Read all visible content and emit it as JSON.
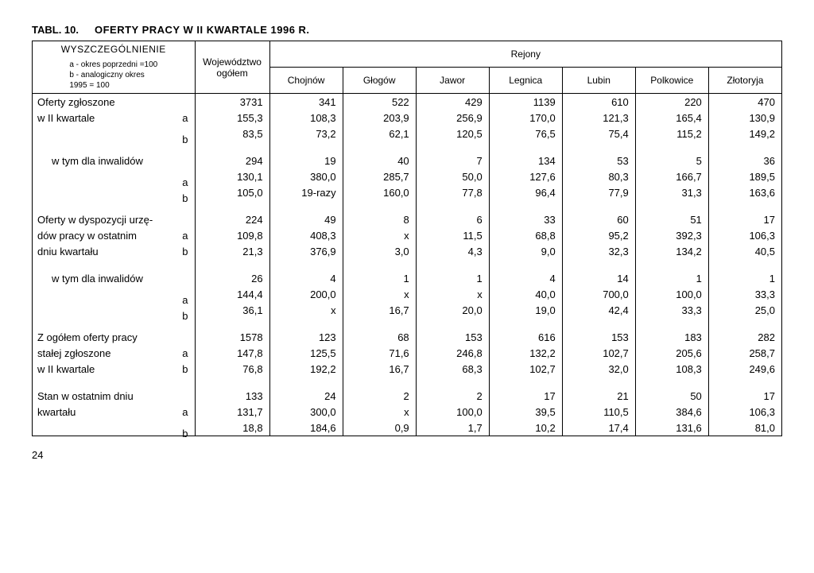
{
  "tablLabel": "TABL. 10.",
  "title": "OFERTY PRACY W II KWARTALE 1996 R.",
  "headers": {
    "wyszMain": "WYSZCZEGÓLNIENIE",
    "wyszSub1": "a - okres poprzedni =100",
    "wyszSub2": "b - analogiczny okres",
    "wyszSub3": "1995 = 100",
    "woj1": "Województwo ogółem",
    "rejony": "Rejony",
    "cols": [
      "Chojnów",
      "Głogów",
      "Jawor",
      "Legnica",
      "Lubin",
      "Polkowice",
      "Złotoryja"
    ]
  },
  "rows": [
    {
      "label": "Oferty zgłoszone",
      "v": [
        "3731",
        "341",
        "522",
        "429",
        "1139",
        "610",
        "220",
        "470"
      ]
    },
    {
      "label": "w II kwartale",
      "suffix": "a",
      "v": [
        "155,3",
        "108,3",
        "203,9",
        "256,9",
        "170,0",
        "121,3",
        "165,4",
        "130,9"
      ]
    },
    {
      "label": "",
      "suffix": "b",
      "v": [
        "83,5",
        "73,2",
        "62,1",
        "120,5",
        "76,5",
        "75,4",
        "115,2",
        "149,2"
      ]
    },
    {
      "spacer": true
    },
    {
      "label": "w tym dla inwalidów",
      "indent": 1,
      "v": [
        "294",
        "19",
        "40",
        "7",
        "134",
        "53",
        "5",
        "36"
      ]
    },
    {
      "label": "",
      "suffix": "a",
      "v": [
        "130,1",
        "380,0",
        "285,7",
        "50,0",
        "127,6",
        "80,3",
        "166,7",
        "189,5"
      ]
    },
    {
      "label": "",
      "suffix": "b",
      "v": [
        "105,0",
        "19-razy",
        "160,0",
        "77,8",
        "96,4",
        "77,9",
        "31,3",
        "163,6"
      ]
    },
    {
      "spacer": true
    },
    {
      "label": "Oferty w dyspozycji urzę-",
      "v": [
        "224",
        "49",
        "8",
        "6",
        "33",
        "60",
        "51",
        "17"
      ]
    },
    {
      "label": "dów pracy w ostatnim",
      "suffix": "a",
      "v": [
        "109,8",
        "408,3",
        "x",
        "11,5",
        "68,8",
        "95,2",
        "392,3",
        "106,3"
      ]
    },
    {
      "label": "dniu kwartału",
      "suffix": "b",
      "v": [
        "21,3",
        "376,9",
        "3,0",
        "4,3",
        "9,0",
        "32,3",
        "134,2",
        "40,5"
      ]
    },
    {
      "spacer": true
    },
    {
      "label": "w tym dla inwalidów",
      "indent": 1,
      "v": [
        "26",
        "4",
        "1",
        "1",
        "4",
        "14",
        "1",
        "1"
      ]
    },
    {
      "label": "",
      "suffix": "a",
      "v": [
        "144,4",
        "200,0",
        "x",
        "x",
        "40,0",
        "700,0",
        "100,0",
        "33,3"
      ]
    },
    {
      "label": "",
      "suffix": "b",
      "v": [
        "36,1",
        "x",
        "16,7",
        "20,0",
        "19,0",
        "42,4",
        "33,3",
        "25,0"
      ]
    },
    {
      "spacer": true
    },
    {
      "label": "Z ogółem oferty pracy",
      "v": [
        "1578",
        "123",
        "68",
        "153",
        "616",
        "153",
        "183",
        "282"
      ]
    },
    {
      "label": "stałej zgłoszone",
      "suffix": "a",
      "v": [
        "147,8",
        "125,5",
        "71,6",
        "246,8",
        "132,2",
        "102,7",
        "205,6",
        "258,7"
      ]
    },
    {
      "label": "w II kwartale",
      "suffix": "b",
      "v": [
        "76,8",
        "192,2",
        "16,7",
        "68,3",
        "102,7",
        "32,0",
        "108,3",
        "249,6"
      ]
    },
    {
      "spacer": true
    },
    {
      "label": "Stan w ostatnim dniu",
      "v": [
        "133",
        "24",
        "2",
        "2",
        "17",
        "21",
        "50",
        "17"
      ]
    },
    {
      "label": "kwartału",
      "suffix": "a",
      "v": [
        "131,7",
        "300,0",
        "x",
        "100,0",
        "39,5",
        "110,5",
        "384,6",
        "106,3"
      ]
    },
    {
      "label": "",
      "suffix": "b",
      "bottom": true,
      "v": [
        "18,8",
        "184,6",
        "0,9",
        "1,7",
        "10,2",
        "17,4",
        "131,6",
        "81,0"
      ]
    }
  ],
  "pageNumber": "24",
  "style": {
    "background": "#ffffff",
    "text": "#000000",
    "border": "#000000",
    "fontSizeBody": 13,
    "fontSizeHeader": 12,
    "fontSizeSub": 10
  }
}
